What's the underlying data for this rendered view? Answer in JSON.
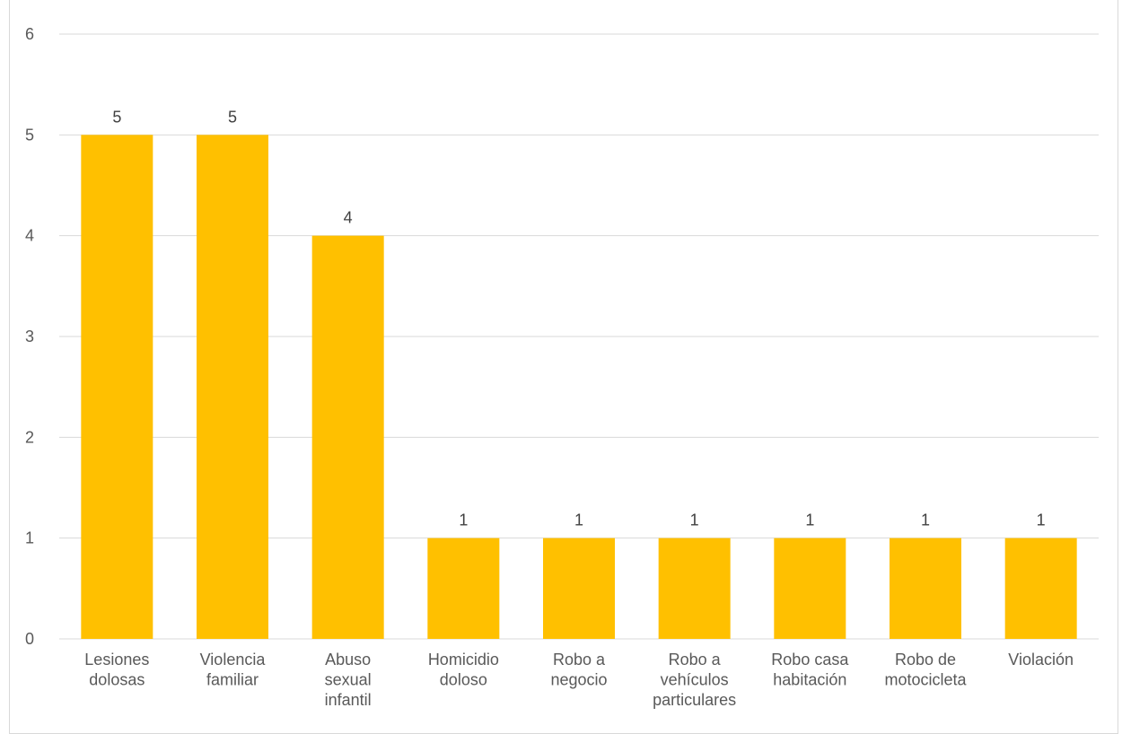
{
  "chart_data": {
    "type": "bar",
    "title": "",
    "xlabel": "",
    "ylabel": "",
    "categories": [
      [
        "Lesiones",
        "dolosas"
      ],
      [
        "Violencia",
        "familiar"
      ],
      [
        "Abuso",
        "sexual",
        "infantil"
      ],
      [
        "Homicidio",
        "doloso"
      ],
      [
        "Robo a",
        "negocio"
      ],
      [
        "Robo a",
        "vehículos",
        "particulares"
      ],
      [
        "Robo casa",
        "habitación"
      ],
      [
        "Robo de",
        "motocicleta"
      ],
      [
        "Violación"
      ]
    ],
    "values": [
      5,
      5,
      4,
      1,
      1,
      1,
      1,
      1,
      1
    ],
    "ylim": [
      0,
      6
    ],
    "yticks": [
      0,
      1,
      2,
      3,
      4,
      5,
      6
    ],
    "grid": true,
    "bar_color": "#FFC000"
  }
}
